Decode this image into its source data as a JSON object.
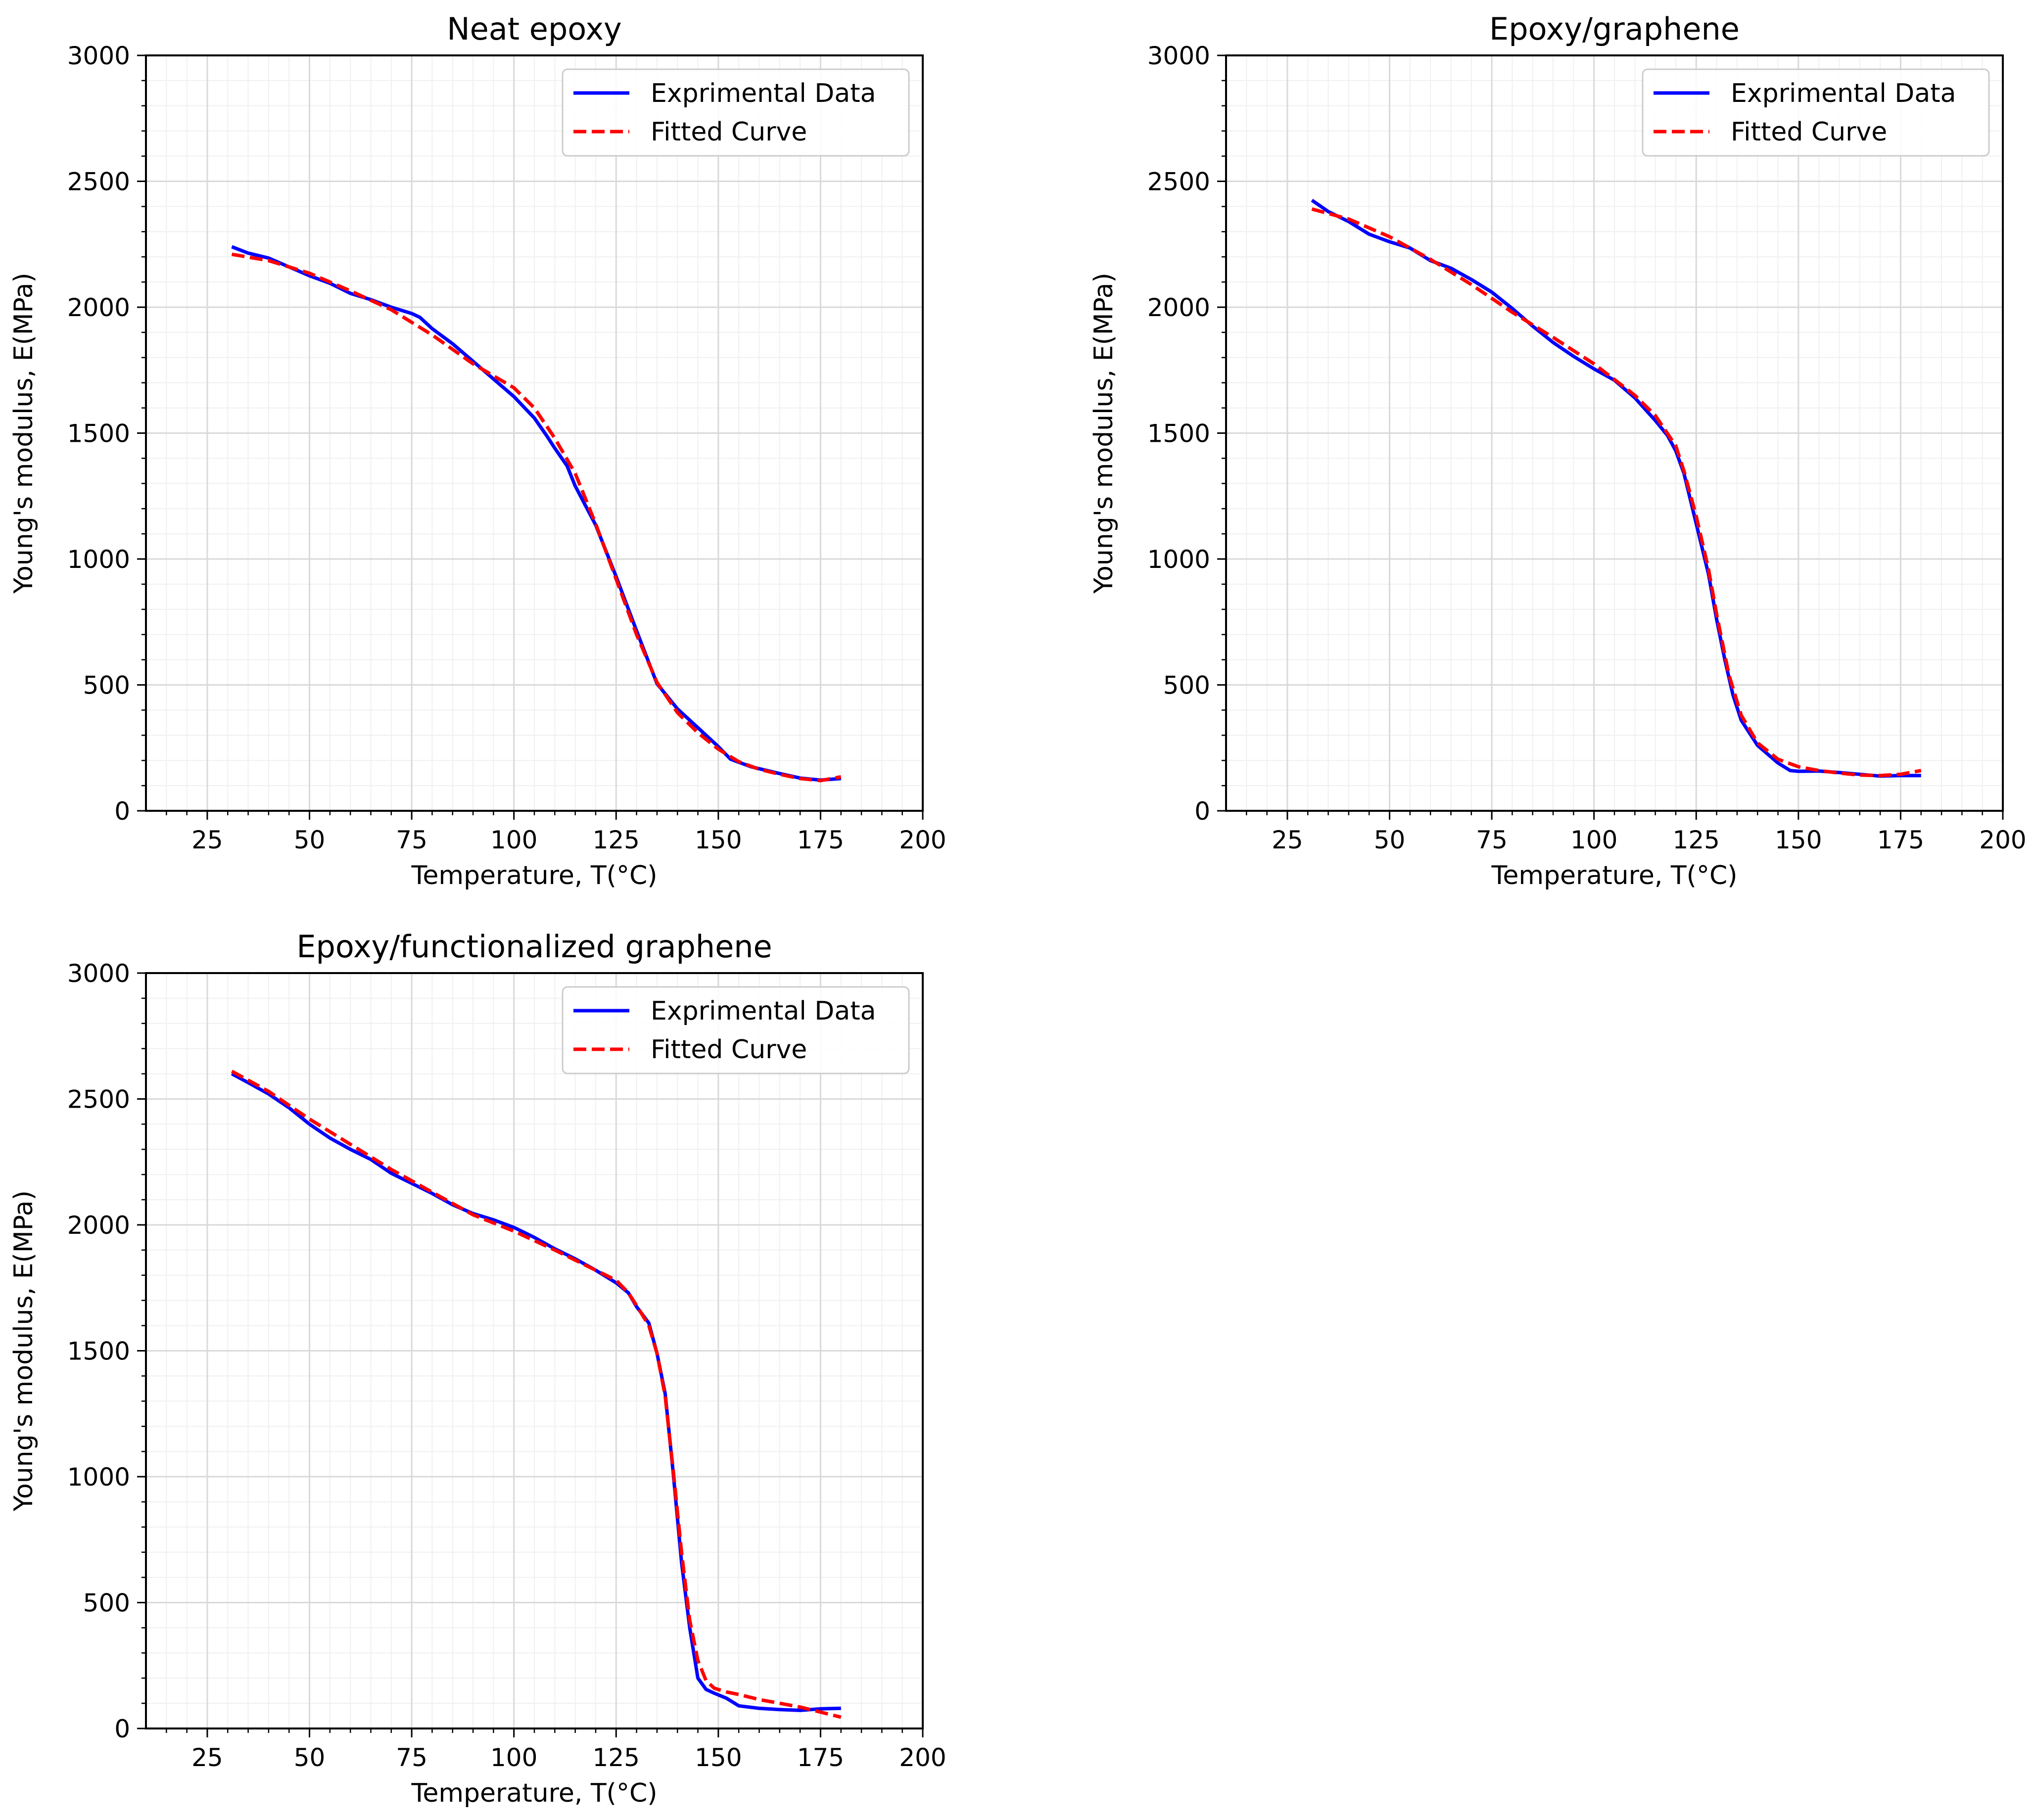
{
  "chart_data": [
    {
      "type": "line",
      "title": "Neat epoxy",
      "xlabel": "Temperature, T(°C)",
      "ylabel": "Young's modulus, E(MPa)",
      "xlim": [
        10,
        200
      ],
      "ylim": [
        0,
        3000
      ],
      "xticks": [
        "25",
        "50",
        "75",
        "100",
        "125",
        "150",
        "175",
        "200"
      ],
      "yticks": [
        "0",
        "500",
        "1000",
        "1500",
        "2000",
        "2500",
        "3000"
      ],
      "legend_position": "upper-right",
      "series": [
        {
          "name": "Exprimental Data",
          "color": "#0000ff",
          "style": "solid",
          "x": [
            31,
            35,
            40,
            45,
            50,
            55,
            60,
            65,
            70,
            75,
            77,
            80,
            85,
            90,
            95,
            100,
            105,
            108,
            110,
            113,
            115,
            120,
            125,
            130,
            135,
            140,
            145,
            150,
            153,
            158,
            165,
            170,
            175,
            180
          ],
          "y": [
            2240,
            2215,
            2195,
            2160,
            2125,
            2095,
            2055,
            2030,
            2000,
            1975,
            1960,
            1915,
            1855,
            1785,
            1715,
            1645,
            1560,
            1490,
            1440,
            1370,
            1290,
            1135,
            930,
            715,
            505,
            405,
            330,
            255,
            205,
            175,
            148,
            130,
            122,
            128
          ]
        },
        {
          "name": "Fitted Curve",
          "color": "#ff0000",
          "style": "dashed",
          "x": [
            31,
            40,
            50,
            60,
            70,
            80,
            90,
            100,
            105,
            110,
            115,
            120,
            125,
            130,
            135,
            140,
            145,
            150,
            155,
            160,
            165,
            170,
            175,
            180
          ],
          "y": [
            2210,
            2185,
            2135,
            2065,
            1990,
            1890,
            1775,
            1680,
            1600,
            1480,
            1340,
            1140,
            920,
            700,
            510,
            390,
            310,
            245,
            195,
            165,
            145,
            128,
            120,
            135
          ]
        }
      ]
    },
    {
      "type": "line",
      "title": "Epoxy/graphene",
      "xlabel": "Temperature, T(°C)",
      "ylabel": "Young's modulus, E(MPa)",
      "xlim": [
        10,
        200
      ],
      "ylim": [
        0,
        3000
      ],
      "xticks": [
        "25",
        "50",
        "75",
        "100",
        "125",
        "150",
        "175",
        "200"
      ],
      "yticks": [
        "0",
        "500",
        "1000",
        "1500",
        "2000",
        "2500",
        "3000"
      ],
      "legend_position": "upper-right",
      "series": [
        {
          "name": "Exprimental Data",
          "color": "#0000ff",
          "style": "solid",
          "x": [
            31,
            35,
            40,
            45,
            50,
            55,
            60,
            65,
            70,
            75,
            80,
            85,
            90,
            95,
            100,
            105,
            110,
            115,
            118,
            120,
            122,
            125,
            128,
            130,
            132,
            134,
            136,
            140,
            145,
            148,
            150,
            155,
            160,
            165,
            170,
            175,
            180
          ],
          "y": [
            2425,
            2380,
            2340,
            2290,
            2260,
            2235,
            2185,
            2155,
            2110,
            2060,
            1995,
            1925,
            1860,
            1805,
            1755,
            1710,
            1640,
            1550,
            1490,
            1430,
            1340,
            1140,
            940,
            760,
            600,
            460,
            360,
            260,
            190,
            160,
            157,
            158,
            152,
            145,
            138,
            140,
            140
          ]
        },
        {
          "name": "Fitted Curve",
          "color": "#ff0000",
          "style": "dashed",
          "x": [
            31,
            40,
            50,
            60,
            70,
            80,
            90,
            100,
            110,
            115,
            120,
            122,
            125,
            128,
            130,
            133,
            136,
            140,
            145,
            150,
            155,
            160,
            165,
            170,
            175,
            180
          ],
          "y": [
            2390,
            2350,
            2280,
            2190,
            2090,
            1980,
            1880,
            1775,
            1650,
            1570,
            1450,
            1350,
            1170,
            960,
            780,
            540,
            380,
            270,
            205,
            175,
            160,
            150,
            142,
            140,
            145,
            160
          ]
        }
      ]
    },
    {
      "type": "line",
      "title": "Epoxy/functionalized graphene",
      "xlabel": "Temperature, T(°C)",
      "ylabel": "Young's modulus, E(MPa)",
      "xlim": [
        10,
        200
      ],
      "ylim": [
        0,
        3000
      ],
      "xticks": [
        "25",
        "50",
        "75",
        "100",
        "125",
        "150",
        "175",
        "200"
      ],
      "yticks": [
        "0",
        "500",
        "1000",
        "1500",
        "2000",
        "2500",
        "3000"
      ],
      "legend_position": "upper-right",
      "series": [
        {
          "name": "Exprimental Data",
          "color": "#0000ff",
          "style": "solid",
          "x": [
            31,
            35,
            40,
            45,
            50,
            55,
            60,
            65,
            70,
            75,
            80,
            85,
            90,
            95,
            100,
            105,
            110,
            115,
            120,
            125,
            128,
            130,
            133,
            135,
            137,
            139,
            141,
            143,
            145,
            147,
            149,
            152,
            155,
            160,
            165,
            170,
            175,
            180
          ],
          "y": [
            2600,
            2565,
            2520,
            2465,
            2400,
            2345,
            2300,
            2260,
            2205,
            2165,
            2125,
            2080,
            2045,
            2020,
            1990,
            1950,
            1905,
            1865,
            1820,
            1770,
            1730,
            1675,
            1610,
            1490,
            1330,
            1010,
            660,
            400,
            200,
            155,
            140,
            120,
            90,
            80,
            75,
            72,
            78,
            80
          ]
        },
        {
          "name": "Fitted Curve",
          "color": "#ff0000",
          "style": "dashed",
          "x": [
            31,
            40,
            50,
            60,
            70,
            80,
            90,
            100,
            110,
            120,
            125,
            128,
            130,
            133,
            135,
            137,
            139,
            141,
            143,
            145,
            147,
            149,
            152,
            155,
            160,
            165,
            170,
            175,
            180
          ],
          "y": [
            2610,
            2530,
            2420,
            2320,
            2220,
            2130,
            2040,
            1975,
            1900,
            1820,
            1780,
            1730,
            1680,
            1600,
            1490,
            1320,
            1020,
            700,
            430,
            270,
            190,
            160,
            145,
            135,
            115,
            100,
            85,
            65,
            45
          ]
        }
      ]
    }
  ]
}
